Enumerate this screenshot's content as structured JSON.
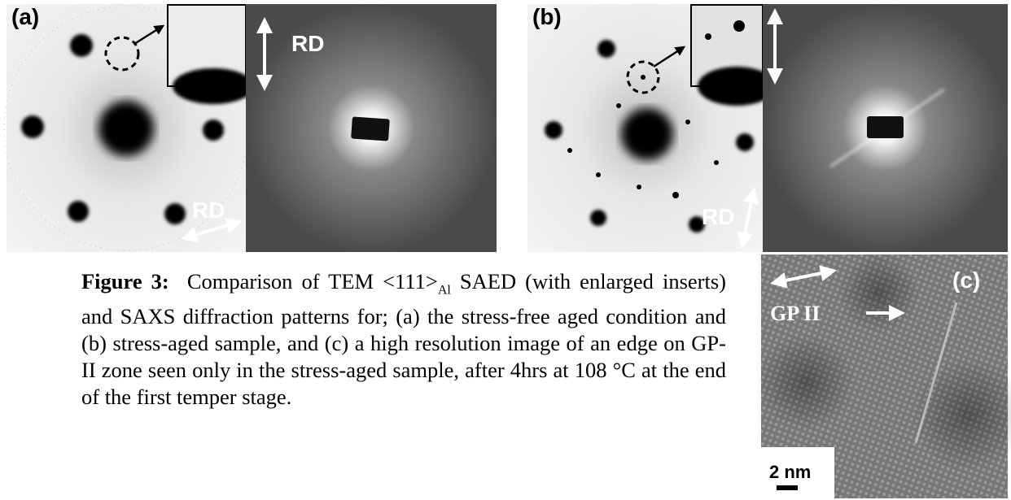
{
  "panels": [
    {
      "label": "(a)",
      "rd_top": "RD",
      "rd_bottom": "RD"
    },
    {
      "label": "(b)",
      "rd_bottom": "RD"
    },
    {
      "label": "(c)",
      "annotation": "GP II",
      "scale_bar": "2 nm"
    }
  ],
  "caption": {
    "figure_label": "Figure 3:",
    "text_before": "Comparison of TEM <111>",
    "subscript": "Al",
    "text_after": " SAED (with enlarged inserts) and SAXS diffraction patterns for; (a) the stress-free aged condition and (b) stress-aged sample, and (c) a high resolution image of an edge on GP-II zone seen only in the stress-aged sample, after 4hrs at 108 °C at the end of the first temper stage."
  }
}
